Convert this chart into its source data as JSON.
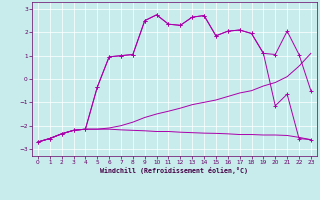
{
  "xlabel": "Windchill (Refroidissement éolien,°C)",
  "background_color": "#c8ecec",
  "line_color": "#aa00aa",
  "xlim": [
    -0.5,
    23.5
  ],
  "ylim": [
    -3.3,
    3.3
  ],
  "xticks": [
    0,
    1,
    2,
    3,
    4,
    5,
    6,
    7,
    8,
    9,
    10,
    11,
    12,
    13,
    14,
    15,
    16,
    17,
    18,
    19,
    20,
    21,
    22,
    23
  ],
  "yticks": [
    -3,
    -2,
    -1,
    0,
    1,
    2,
    3
  ],
  "line1_x": [
    0,
    1,
    2,
    3,
    4,
    5,
    6,
    7,
    8,
    9,
    10,
    11,
    12,
    13,
    14,
    15,
    16,
    17,
    18,
    19,
    20,
    21,
    22,
    23
  ],
  "line1_y": [
    -2.7,
    -2.55,
    -2.35,
    -2.2,
    -2.15,
    -2.15,
    -2.15,
    -2.18,
    -2.2,
    -2.22,
    -2.25,
    -2.25,
    -2.28,
    -2.3,
    -2.32,
    -2.33,
    -2.35,
    -2.38,
    -2.38,
    -2.4,
    -2.4,
    -2.42,
    -2.5,
    -2.6
  ],
  "line2_x": [
    0,
    1,
    2,
    3,
    4,
    5,
    6,
    7,
    8,
    9,
    10,
    11,
    12,
    13,
    14,
    15,
    16,
    17,
    18,
    19,
    20,
    21,
    22,
    23
  ],
  "line2_y": [
    -2.7,
    -2.55,
    -2.35,
    -2.2,
    -2.15,
    -2.15,
    -2.1,
    -2.0,
    -1.85,
    -1.65,
    -1.5,
    -1.38,
    -1.25,
    -1.1,
    -1.0,
    -0.9,
    -0.75,
    -0.6,
    -0.5,
    -0.3,
    -0.15,
    0.1,
    0.55,
    1.1
  ],
  "line3_x": [
    0,
    1,
    2,
    3,
    4,
    5,
    6,
    7,
    8,
    9,
    10,
    11,
    12,
    13,
    14,
    15,
    16,
    17,
    18,
    19,
    20,
    21,
    22,
    23
  ],
  "line3_y": [
    -2.7,
    -2.55,
    -2.35,
    -2.2,
    -2.15,
    -0.35,
    0.95,
    1.0,
    1.05,
    2.5,
    2.75,
    2.35,
    2.3,
    2.65,
    2.72,
    1.85,
    2.05,
    2.1,
    1.95,
    1.1,
    1.05,
    2.05,
    1.05,
    -0.5
  ],
  "line4_x": [
    0,
    1,
    2,
    3,
    4,
    5,
    6,
    7,
    8,
    9,
    10,
    11,
    12,
    13,
    14,
    15,
    16,
    17,
    18,
    19,
    20,
    21,
    22,
    23
  ],
  "line4_y": [
    -2.7,
    -2.55,
    -2.35,
    -2.2,
    -2.15,
    -0.35,
    0.95,
    1.0,
    1.05,
    2.5,
    2.75,
    2.35,
    2.3,
    2.65,
    2.72,
    1.85,
    2.05,
    2.1,
    1.95,
    1.1,
    -1.15,
    -0.65,
    -2.55,
    -2.6
  ]
}
